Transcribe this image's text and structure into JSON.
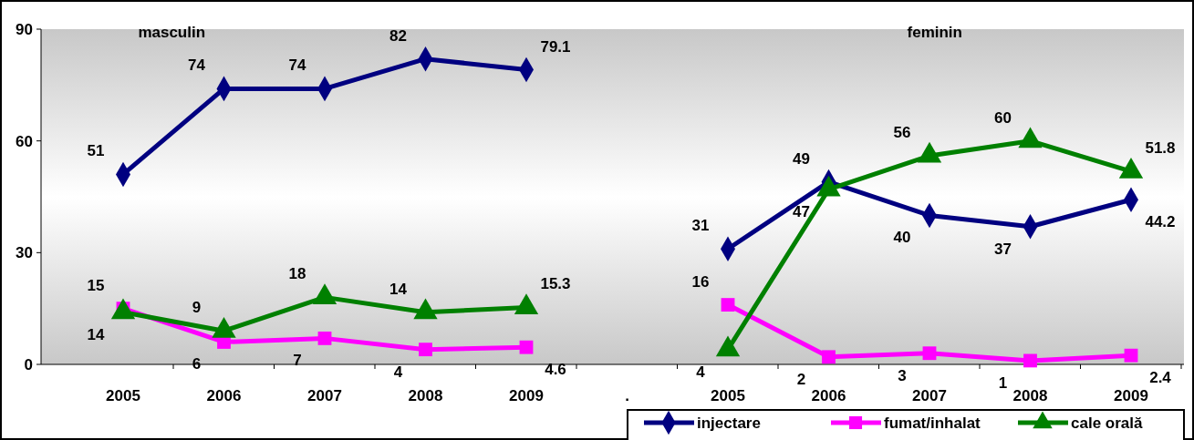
{
  "chart_data": {
    "type": "line",
    "categories": [
      "2005",
      "2006",
      "2007",
      "2008",
      "2009",
      ".",
      "2005",
      "2006",
      "2007",
      "2008",
      "2009"
    ],
    "series": [
      {
        "name": "injectare",
        "color": "#000080",
        "marker": "diamond",
        "values": [
          51,
          74,
          74,
          82,
          79.1,
          null,
          31,
          49,
          40,
          37,
          44.2
        ]
      },
      {
        "name": "fumat/inhalat",
        "color": "#ff00ff",
        "marker": "square",
        "values": [
          15,
          6,
          7,
          4,
          4.6,
          null,
          16,
          2,
          3,
          1,
          2.4
        ]
      },
      {
        "name": "cale orală",
        "color": "#008000",
        "marker": "triangle",
        "values": [
          14,
          9,
          18,
          14,
          15.3,
          null,
          4,
          47,
          56,
          60,
          51.8
        ]
      }
    ],
    "ylim": [
      0,
      90
    ],
    "yticks": [
      0,
      30,
      60,
      90
    ],
    "data_labels": true,
    "grid": false,
    "legend": "bottom right",
    "annotations": [
      "masculin",
      "feminin"
    ]
  }
}
